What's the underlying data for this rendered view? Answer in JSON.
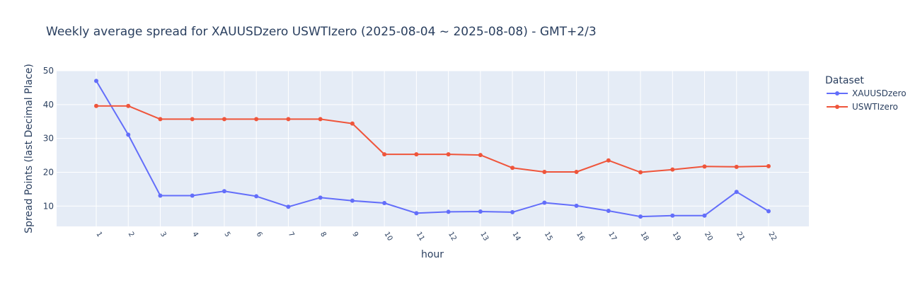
{
  "chart_data": {
    "type": "line",
    "title": "Weekly average spread for  XAUUSDzero USWTIzero (2025-08-04 ~ 2025-08-08) - GMT+2/3",
    "xlabel": "hour",
    "ylabel": "Spread Points (last Decimal Place)",
    "x": [
      "1",
      "2",
      "3",
      "4",
      "5",
      "6",
      "7",
      "8",
      "9",
      "10",
      "11",
      "12",
      "13",
      "14",
      "15",
      "16",
      "17",
      "18",
      "19",
      "20",
      "21",
      "22"
    ],
    "ylim": [
      4,
      50
    ],
    "yticks": [
      10,
      20,
      30,
      40,
      50
    ],
    "grid": true,
    "legend": {
      "title": "Dataset",
      "placement": "top-right"
    },
    "series": [
      {
        "name": "XAUUSDzero",
        "color": "#636efa",
        "values": [
          47.0,
          31.1,
          13.1,
          13.1,
          14.4,
          12.9,
          9.8,
          12.5,
          11.6,
          10.9,
          7.9,
          8.3,
          8.4,
          8.2,
          11.0,
          10.1,
          8.6,
          6.9,
          7.2,
          7.2,
          14.2,
          8.5
        ]
      },
      {
        "name": "USWTIzero",
        "color": "#ef553b",
        "values": [
          39.6,
          39.6,
          35.7,
          35.7,
          35.7,
          35.7,
          35.7,
          35.7,
          34.4,
          25.3,
          25.3,
          25.3,
          25.1,
          21.3,
          20.1,
          20.1,
          23.5,
          20.0,
          20.8,
          21.7,
          21.6,
          21.8
        ]
      }
    ]
  }
}
